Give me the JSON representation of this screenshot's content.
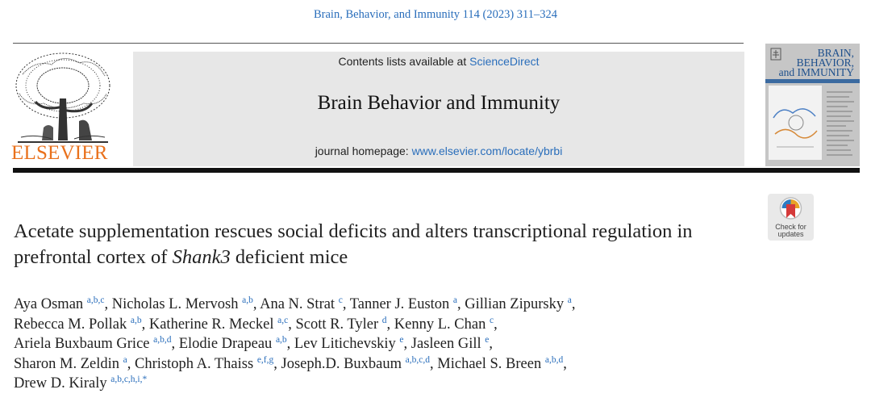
{
  "header": {
    "citation": "Brain, Behavior, and Immunity 114 (2023) 311–324",
    "publisher_logo_text": "ELSEVIER",
    "contents_prefix": "Contents lists available at ",
    "contents_link": "ScienceDirect",
    "journal_name": "Brain Behavior and Immunity",
    "homepage_prefix": "journal homepage: ",
    "homepage_link": "www.elsevier.com/locate/ybrbi"
  },
  "cover": {
    "title_line1": "BRAIN,",
    "title_line2": "BEHAVIOR,",
    "title_line3": "and IMMUNITY"
  },
  "crossmark": {
    "line1": "Check for",
    "line2": "updates"
  },
  "article": {
    "title_part1": "Acetate supplementation rescues social deficits and alters transcriptional regulation in prefrontal cortex of ",
    "title_italic": "Shank3",
    "title_part2": " deficient mice"
  },
  "authors": [
    {
      "name": "Aya Osman",
      "aff": "a,b,c"
    },
    {
      "name": "Nicholas L. Mervosh",
      "aff": "a,b"
    },
    {
      "name": "Ana N. Strat",
      "aff": "c"
    },
    {
      "name": "Tanner J. Euston",
      "aff": "a"
    },
    {
      "name": "Gillian Zipursky",
      "aff": "a"
    },
    {
      "name": "Rebecca M. Pollak",
      "aff": "a,b"
    },
    {
      "name": "Katherine R. Meckel",
      "aff": "a,c"
    },
    {
      "name": "Scott R. Tyler",
      "aff": "d"
    },
    {
      "name": "Kenny L. Chan",
      "aff": "c"
    },
    {
      "name": "Ariela Buxbaum Grice",
      "aff": "a,b,d"
    },
    {
      "name": "Elodie Drapeau",
      "aff": "a,b"
    },
    {
      "name": "Lev Litichevskiy",
      "aff": "e"
    },
    {
      "name": "Jasleen Gill",
      "aff": "e"
    },
    {
      "name": "Sharon M. Zeldin",
      "aff": "a"
    },
    {
      "name": "Christoph A. Thaiss",
      "aff": "e,f,g"
    },
    {
      "name": "Joseph.D. Buxbaum",
      "aff": "a,b,c,d"
    },
    {
      "name": "Michael S. Breen",
      "aff": "a,b,d"
    },
    {
      "name": "Drew D. Kiraly",
      "aff": "a,b,c,h,i,*"
    }
  ]
}
